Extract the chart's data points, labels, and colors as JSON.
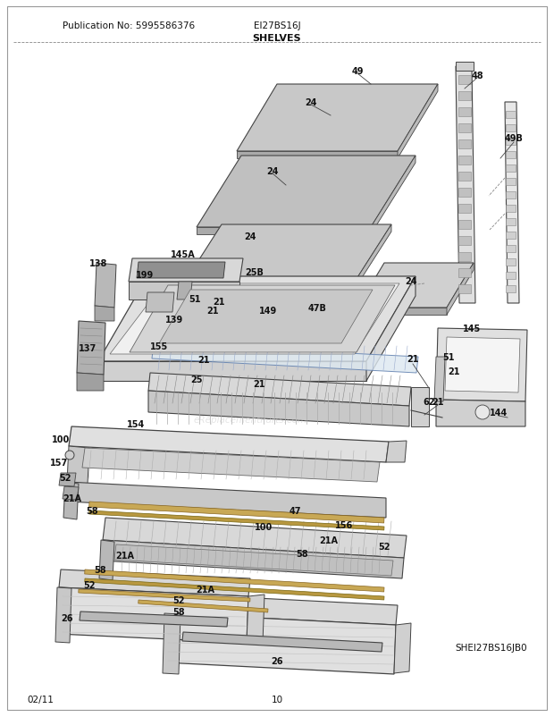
{
  "pub_no": "Publication No: 5995586376",
  "model": "EI27BS16J",
  "section": "SHELVES",
  "diagram_id": "SHEI27BS16JB0",
  "date": "02/11",
  "page": "10",
  "bg_color": "#ffffff",
  "figsize": [
    6.2,
    8.03
  ],
  "dpi": 100,
  "header_fontsize": 7.5,
  "label_fontsize": 7,
  "title_fontsize": 8
}
